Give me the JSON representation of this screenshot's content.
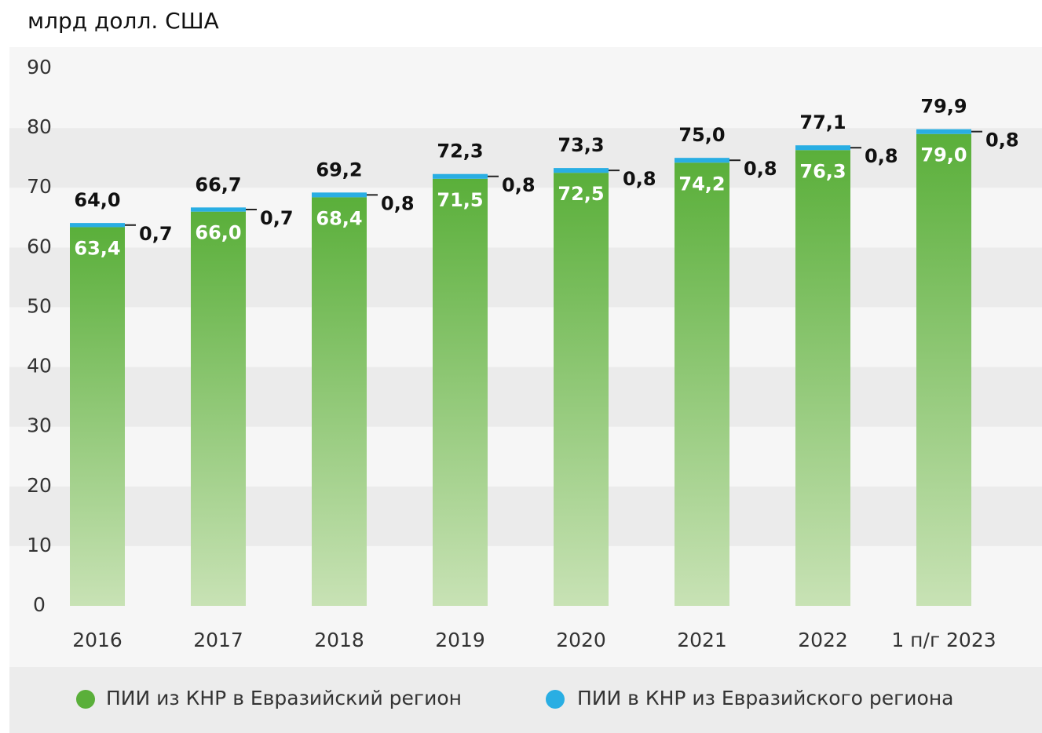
{
  "chart_data": {
    "type": "stacked_bar",
    "title": "млрд долл. США",
    "categories": [
      "2016",
      "2017",
      "2018",
      "2019",
      "2020",
      "2021",
      "2022",
      "1 п/г 2023"
    ],
    "series": [
      {
        "name": "ПИИ из КНР в Евразийский регион",
        "color": "#5aaf3a",
        "values": [
          63.4,
          66.0,
          68.4,
          71.5,
          72.5,
          74.2,
          76.3,
          79.0
        ],
        "value_labels": [
          "63,4",
          "66,0",
          "68,4",
          "71,5",
          "72,5",
          "74,2",
          "76,3",
          "79,0"
        ]
      },
      {
        "name": "ПИИ в КНР из Евразийского региона",
        "color": "#29aee3",
        "values": [
          0.7,
          0.7,
          0.8,
          0.8,
          0.8,
          0.8,
          0.8,
          0.8
        ],
        "value_labels": [
          "0,7",
          "0,7",
          "0,8",
          "0,8",
          "0,8",
          "0,8",
          "0,8",
          "0,8"
        ]
      }
    ],
    "total_labels": [
      "64,0",
      "66,7",
      "69,2",
      "72,3",
      "73,3",
      "75,0",
      "77,1",
      "79,9"
    ],
    "ylim": [
      0,
      90
    ],
    "yticks": [
      0,
      10,
      20,
      30,
      40,
      50,
      60,
      70,
      80,
      90
    ],
    "grid": true
  }
}
